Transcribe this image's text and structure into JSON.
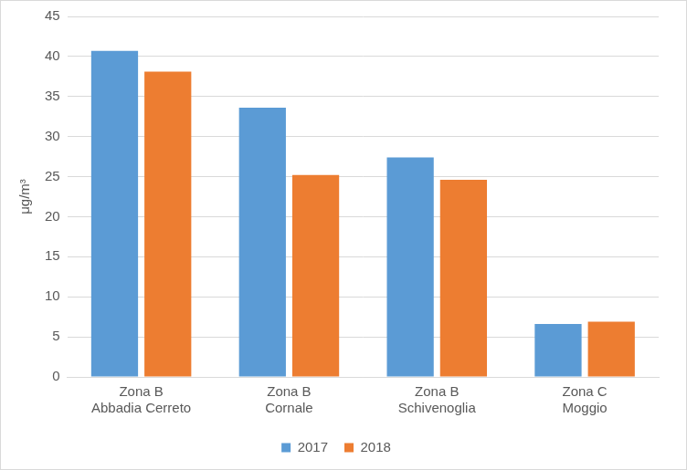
{
  "chart_data": {
    "type": "bar",
    "y_label": "μg/m³",
    "categories": [
      [
        "Zona B",
        "Abbadia Cerreto"
      ],
      [
        "Zona B",
        "Cornale"
      ],
      [
        "Zona B",
        "Schivenoglia"
      ],
      [
        "Zona C",
        "Moggio"
      ]
    ],
    "series": [
      {
        "name": "2017",
        "color": "#5b9bd5",
        "values": [
          40.7,
          33.6,
          27.4,
          6.6
        ]
      },
      {
        "name": "2018",
        "color": "#ed7d31",
        "values": [
          38.1,
          25.2,
          24.6,
          6.9
        ]
      }
    ],
    "ylim": [
      0,
      45
    ],
    "yticks": [
      0,
      5,
      10,
      15,
      20,
      25,
      30,
      35,
      40,
      45
    ],
    "grid": true,
    "legend": "bottom"
  }
}
